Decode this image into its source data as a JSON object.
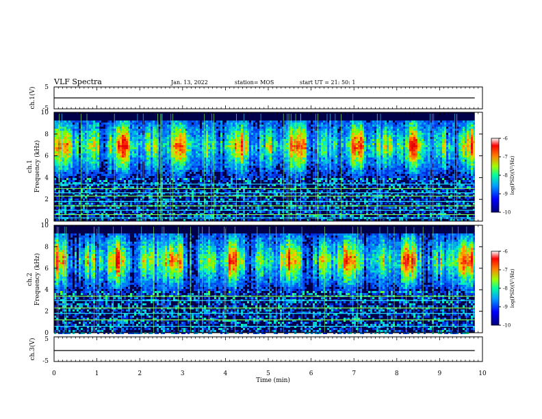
{
  "header": {
    "title": "VLF Spectra",
    "date": "Jan. 13, 2022",
    "station": "station= MOS",
    "start": "start  UT =   21: 50: 1"
  },
  "chart_data": [
    {
      "type": "line",
      "panel": "ch1-waveform",
      "ylabel": "ch.1(V)",
      "ylim": [
        -5,
        5
      ],
      "y_ticks": [
        "5",
        "-5"
      ],
      "series_level": 0
    },
    {
      "type": "heatmap",
      "panel": "ch1-spectrogram",
      "ylabel": "ch.1\nFrequency (kHz)",
      "ylim": [
        0,
        10
      ],
      "y_ticks": [
        "0",
        "2",
        "4",
        "6",
        "8",
        "10"
      ],
      "xlim": [
        0,
        10
      ],
      "intense_band_khz": [
        5.0,
        9.0
      ],
      "hiss_center_khz": 7.0,
      "horizontal_lines_khz": [
        0.3,
        0.6,
        1.0,
        1.4,
        1.8,
        2.3,
        2.6,
        3.0,
        3.4
      ],
      "colorbar": {
        "label": "log(PSD)(V²/Hz)",
        "ticks": [
          "-6",
          "-7",
          "-8",
          "-9",
          "-10"
        ],
        "range": [
          -10,
          -6
        ]
      }
    },
    {
      "type": "heatmap",
      "panel": "ch2-spectrogram",
      "ylabel": "ch.2\nFrequency (kHz)",
      "ylim": [
        0,
        10
      ],
      "y_ticks": [
        "0",
        "2",
        "4",
        "6",
        "8",
        "10"
      ],
      "xlim": [
        0,
        10
      ],
      "intense_band_khz": [
        5.0,
        8.5
      ],
      "hiss_center_khz": 6.8,
      "horizontal_lines_khz": [
        0.6,
        1.2,
        1.8,
        2.3,
        3.0,
        3.4
      ],
      "colorbar": {
        "label": "log(PSD)(V²/Hz)",
        "ticks": [
          "-6",
          "-7",
          "-8",
          "-9",
          "-10"
        ],
        "range": [
          -10,
          -6
        ]
      }
    },
    {
      "type": "line",
      "panel": "ch3-waveform",
      "ylabel": "ch.3(V)",
      "ylim": [
        -5,
        5
      ],
      "y_ticks": [
        "5",
        "-5"
      ],
      "series_level": 0
    }
  ],
  "x_axis": {
    "label": "Time  (min)",
    "ticks": [
      "0",
      "1",
      "2",
      "3",
      "4",
      "5",
      "6",
      "7",
      "8",
      "9",
      "10"
    ],
    "range": [
      0,
      10
    ],
    "data_end_min": 9.82
  },
  "colors": {
    "axis": "#000000",
    "background": "#ffffff"
  }
}
